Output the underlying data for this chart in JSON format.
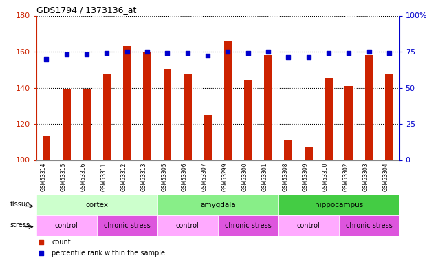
{
  "title": "GDS1794 / 1373136_at",
  "samples": [
    "GSM53314",
    "GSM53315",
    "GSM53316",
    "GSM53311",
    "GSM53312",
    "GSM53313",
    "GSM53305",
    "GSM53306",
    "GSM53307",
    "GSM53299",
    "GSM53300",
    "GSM53301",
    "GSM53308",
    "GSM53309",
    "GSM53310",
    "GSM53302",
    "GSM53303",
    "GSM53304"
  ],
  "counts": [
    113,
    139,
    139,
    148,
    163,
    160,
    150,
    148,
    125,
    166,
    144,
    158,
    111,
    107,
    145,
    141,
    158,
    148
  ],
  "percentiles": [
    70,
    73,
    73,
    74,
    75,
    75,
    74,
    74,
    72,
    75,
    74,
    75,
    71,
    71,
    74,
    74,
    75,
    74
  ],
  "ylim_left": [
    100,
    180
  ],
  "ylim_right": [
    0,
    100
  ],
  "yticks_left": [
    100,
    120,
    140,
    160,
    180
  ],
  "yticks_right": [
    0,
    25,
    50,
    75,
    100
  ],
  "bar_color": "#cc2200",
  "dot_color": "#0000cc",
  "tissue_groups": [
    {
      "label": "cortex",
      "start": 0,
      "end": 6,
      "color": "#ccffcc"
    },
    {
      "label": "amygdala",
      "start": 6,
      "end": 12,
      "color": "#88ee88"
    },
    {
      "label": "hippocampus",
      "start": 12,
      "end": 18,
      "color": "#44cc44"
    }
  ],
  "stress_groups": [
    {
      "label": "control",
      "start": 0,
      "end": 3,
      "color": "#ffaaff"
    },
    {
      "label": "chronic stress",
      "start": 3,
      "end": 6,
      "color": "#dd55dd"
    },
    {
      "label": "control",
      "start": 6,
      "end": 9,
      "color": "#ffaaff"
    },
    {
      "label": "chronic stress",
      "start": 9,
      "end": 12,
      "color": "#dd55dd"
    },
    {
      "label": "control",
      "start": 12,
      "end": 15,
      "color": "#ffaaff"
    },
    {
      "label": "chronic stress",
      "start": 15,
      "end": 18,
      "color": "#dd55dd"
    }
  ],
  "xtick_bg_color": "#cccccc",
  "legend_count_color": "#cc2200",
  "legend_dot_color": "#0000cc",
  "background_color": "#ffffff",
  "grid_color": "#000000",
  "bar_width": 0.4
}
